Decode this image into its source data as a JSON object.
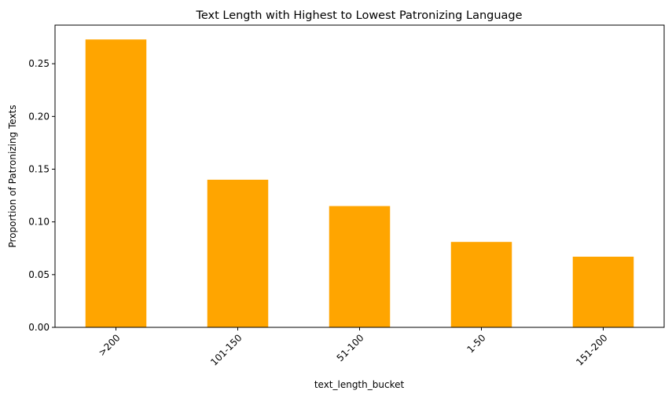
{
  "chart_data": {
    "type": "bar",
    "title": "Text Length with Highest to Lowest Patronizing Language",
    "xlabel": "text_length_bucket",
    "ylabel": "Proportion of Patronizing Texts",
    "categories": [
      ">200",
      "101-150",
      "51-100",
      "1-50",
      "151-200"
    ],
    "values": [
      0.273,
      0.14,
      0.115,
      0.081,
      0.067
    ],
    "ylim": [
      0,
      0.2866
    ],
    "yticks": [
      "0.00",
      "0.05",
      "0.10",
      "0.15",
      "0.20",
      "0.25"
    ],
    "bar_color": "#ffa500",
    "grid": false,
    "legend": "none"
  }
}
